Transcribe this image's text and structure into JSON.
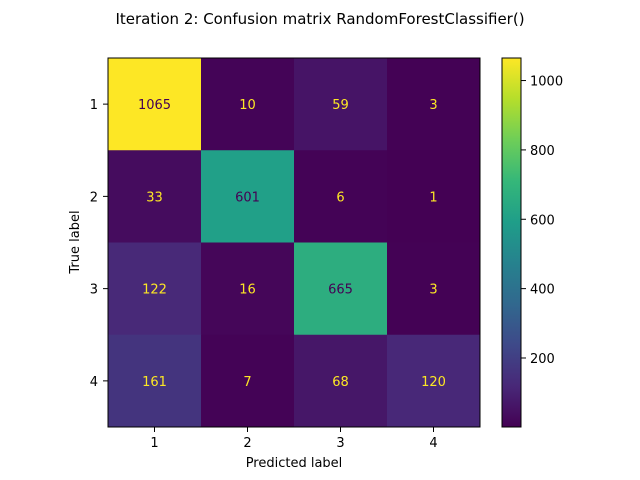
{
  "chart_data": {
    "type": "heatmap",
    "title": "Iteration 2: Confusion matrix RandomForestClassifier()",
    "xlabel": "Predicted label",
    "ylabel": "True label",
    "x_categories": [
      "1",
      "2",
      "3",
      "4"
    ],
    "y_categories": [
      "1",
      "2",
      "3",
      "4"
    ],
    "matrix": [
      [
        1065,
        10,
        59,
        3
      ],
      [
        33,
        601,
        6,
        1
      ],
      [
        122,
        16,
        665,
        3
      ],
      [
        161,
        7,
        68,
        120
      ]
    ],
    "colormap": "viridis",
    "color_range": [
      1,
      1065
    ],
    "colorbar_ticks": [
      200,
      400,
      600,
      800,
      1000
    ],
    "text_color_light": "#fde725",
    "text_color_dark": "#440154"
  }
}
